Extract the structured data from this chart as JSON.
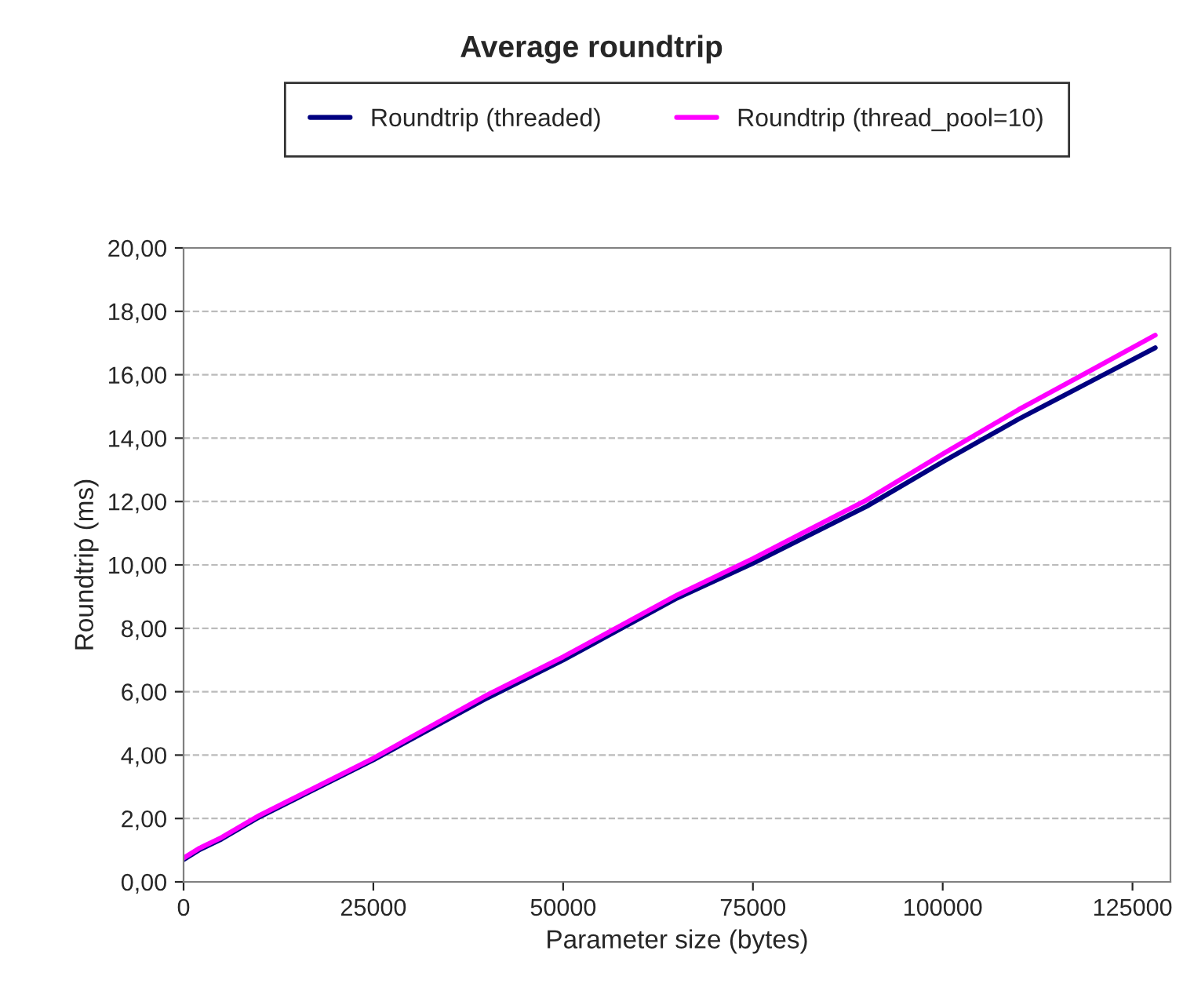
{
  "chart_data": {
    "type": "line",
    "title": "Average roundtrip",
    "xlabel": "Parameter size (bytes)",
    "ylabel": "Roundtrip (ms)",
    "xlim": [
      0,
      130000
    ],
    "xticks": [
      0,
      25000,
      50000,
      75000,
      100000,
      125000
    ],
    "ylim": [
      0,
      20
    ],
    "yticks": [
      {
        "value": 0,
        "label": "0,00"
      },
      {
        "value": 2,
        "label": "2,00"
      },
      {
        "value": 4,
        "label": "4,00"
      },
      {
        "value": 6,
        "label": "6,00"
      },
      {
        "value": 8,
        "label": "8,00"
      },
      {
        "value": 10,
        "label": "10,00"
      },
      {
        "value": 12,
        "label": "12,00"
      },
      {
        "value": 14,
        "label": "14,00"
      },
      {
        "value": 16,
        "label": "16,00"
      },
      {
        "value": 18,
        "label": "18,00"
      },
      {
        "value": 20,
        "label": "20,00"
      }
    ],
    "grid": "y",
    "legend": "top",
    "marker": "none",
    "line_style": "solid",
    "series": [
      {
        "name": "Roundtrip (threaded)",
        "color": "#000080",
        "x": [
          0,
          2000,
          5000,
          10000,
          15000,
          25000,
          40000,
          50000,
          65000,
          75000,
          90000,
          100000,
          110000,
          120000,
          128000
        ],
        "values": [
          0.7,
          1.0,
          1.35,
          2.05,
          2.65,
          3.85,
          5.8,
          7.0,
          8.95,
          10.05,
          11.85,
          13.25,
          14.6,
          15.85,
          16.85
        ]
      },
      {
        "name": "Roundtrip (thread_pool=10)",
        "color": "#ff00ff",
        "x": [
          0,
          2000,
          5000,
          10000,
          15000,
          25000,
          40000,
          50000,
          65000,
          75000,
          90000,
          100000,
          110000,
          120000,
          128000
        ],
        "values": [
          0.75,
          1.05,
          1.4,
          2.1,
          2.7,
          3.9,
          5.9,
          7.1,
          9.05,
          10.2,
          12.05,
          13.5,
          14.9,
          16.2,
          17.25
        ]
      }
    ]
  }
}
